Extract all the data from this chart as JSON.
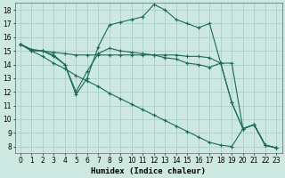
{
  "xlabel": "Humidex (Indice chaleur)",
  "background_color": "#cce8e0",
  "grid_color": "#aacfc7",
  "line_color": "#1a6b5a",
  "xlim": [
    -0.5,
    23.5
  ],
  "ylim": [
    7.5,
    18.5
  ],
  "xticks": [
    0,
    1,
    2,
    3,
    4,
    5,
    6,
    7,
    8,
    9,
    10,
    11,
    12,
    13,
    14,
    15,
    16,
    17,
    18,
    19,
    20,
    21,
    22,
    23
  ],
  "yticks": [
    8,
    9,
    10,
    11,
    12,
    13,
    14,
    15,
    16,
    17,
    18
  ],
  "series": [
    {
      "x": [
        0,
        1,
        2,
        3,
        4,
        5,
        6,
        7,
        8,
        9,
        10,
        11,
        12,
        13,
        14,
        15,
        16,
        17,
        18,
        19,
        20,
        21,
        22,
        23
      ],
      "y": [
        15.5,
        15.1,
        15.0,
        14.7,
        14.0,
        11.8,
        13.0,
        15.3,
        16.9,
        17.1,
        17.3,
        17.5,
        18.4,
        18.0,
        17.3,
        17.0,
        16.7,
        17.0,
        14.1,
        11.2,
        9.3,
        9.6,
        8.1,
        7.9
      ]
    },
    {
      "x": [
        0,
        1,
        2,
        3,
        4,
        5,
        6,
        7,
        8,
        9,
        10,
        11,
        12,
        13,
        14,
        15,
        16,
        17,
        18,
        19,
        20,
        21,
        22,
        23
      ],
      "y": [
        15.5,
        15.1,
        15.0,
        14.9,
        14.8,
        14.7,
        14.7,
        14.7,
        14.7,
        14.7,
        14.7,
        14.7,
        14.7,
        14.7,
        14.7,
        14.6,
        14.6,
        14.5,
        14.1,
        14.1,
        9.3,
        9.6,
        8.1,
        7.9
      ]
    },
    {
      "x": [
        0,
        1,
        2,
        3,
        4,
        5,
        6,
        7,
        8,
        9,
        10,
        11,
        12,
        13,
        14,
        15,
        16,
        17,
        18,
        19,
        20,
        21,
        22,
        23
      ],
      "y": [
        15.5,
        15.0,
        14.6,
        14.1,
        13.7,
        13.2,
        12.8,
        12.4,
        11.9,
        11.5,
        11.1,
        10.7,
        10.3,
        9.9,
        9.5,
        9.1,
        8.7,
        8.3,
        8.1,
        8.0,
        9.3,
        9.6,
        8.1,
        7.9
      ]
    },
    {
      "x": [
        0,
        1,
        2,
        3,
        4,
        5,
        6,
        7,
        8,
        9,
        10,
        11,
        12,
        13,
        14,
        15,
        16,
        17,
        18,
        19,
        20,
        21,
        22,
        23
      ],
      "y": [
        15.5,
        15.0,
        15.0,
        14.6,
        14.0,
        12.0,
        13.5,
        14.8,
        15.2,
        15.0,
        14.9,
        14.8,
        14.7,
        14.5,
        14.4,
        14.1,
        14.0,
        13.8,
        14.1,
        11.2,
        9.3,
        9.6,
        8.1,
        7.9
      ]
    }
  ]
}
